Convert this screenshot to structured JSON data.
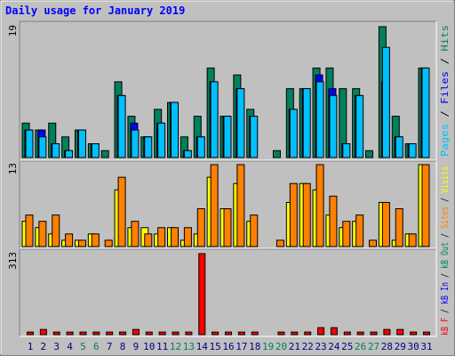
{
  "chart_data": {
    "type": "bar",
    "title": "Daily usage for January 2019",
    "categories": [
      "1",
      "2",
      "3",
      "4",
      "5",
      "6",
      "7",
      "8",
      "9",
      "10",
      "11",
      "12",
      "13",
      "14",
      "15",
      "16",
      "17",
      "18",
      "19",
      "20",
      "21",
      "22",
      "23",
      "24",
      "25",
      "26",
      "27",
      "28",
      "29",
      "30",
      "31"
    ],
    "category_colors": [
      "#000080",
      "#000080",
      "#000080",
      "#000080",
      "#00805c",
      "#00805c",
      "#000080",
      "#000080",
      "#000080",
      "#000080",
      "#000080",
      "#00805c",
      "#00805c",
      "#000080",
      "#000080",
      "#000080",
      "#000080",
      "#000080",
      "#00805c",
      "#00805c",
      "#000080",
      "#000080",
      "#000080",
      "#000080",
      "#000080",
      "#00805c",
      "#00805c",
      "#000080",
      "#000080",
      "#000080",
      "#000080"
    ],
    "legend_separator": "/",
    "panels": [
      {
        "ylim": [
          0,
          19
        ],
        "yticks": [
          19
        ],
        "series": [
          {
            "name": "Hits",
            "color": "#00805c",
            "values": [
              5,
              4,
              5,
              3,
              4,
              2,
              1,
              11,
              6,
              3,
              7,
              8,
              3,
              6,
              13,
              6,
              12,
              7,
              0,
              1,
              10,
              10,
              13,
              13,
              10,
              10,
              1,
              19,
              6,
              2,
              13
            ]
          },
          {
            "name": "Files",
            "color": "#0000ff",
            "values": [
              4,
              4,
              2,
              1,
              4,
              2,
              0,
              9,
              5,
              3,
              5,
              8,
              1,
              3,
              11,
              6,
              10,
              6,
              0,
              0,
              7,
              10,
              12,
              10,
              2,
              9,
              0,
              11,
              3,
              2,
              13
            ]
          },
          {
            "name": "Pages",
            "color": "#00c0ff",
            "values": [
              4,
              3,
              2,
              1,
              4,
              2,
              0,
              9,
              4,
              3,
              5,
              8,
              1,
              3,
              11,
              6,
              10,
              6,
              0,
              0,
              7,
              10,
              11,
              9,
              2,
              9,
              0,
              16,
              3,
              2,
              13
            ]
          }
        ]
      },
      {
        "ylim": [
          0,
          13
        ],
        "yticks": [
          13
        ],
        "series": [
          {
            "name": "Visits",
            "color": "#ffff00",
            "values": [
              4,
              3,
              2,
              1,
              1,
              2,
              0,
              9,
              3,
              3,
              2,
              3,
              1,
              2,
              11,
              6,
              10,
              4,
              0,
              0,
              7,
              10,
              9,
              5,
              3,
              4,
              0,
              7,
              1,
              2,
              13
            ]
          },
          {
            "name": "Sites",
            "color": "#ff8000",
            "values": [
              5,
              4,
              5,
              2,
              1,
              2,
              1,
              11,
              4,
              2,
              3,
              3,
              3,
              6,
              13,
              6,
              13,
              5,
              0,
              1,
              10,
              10,
              13,
              8,
              4,
              5,
              1,
              7,
              6,
              2,
              13
            ]
          }
        ]
      },
      {
        "ylim": [
          0,
          313
        ],
        "yticks": [
          313
        ],
        "series": [
          {
            "name": "kB F",
            "color": "#ff0000",
            "values": [
              10,
              20,
              10,
              10,
              10,
              10,
              10,
              10,
              20,
              10,
              10,
              10,
              10,
              313,
              10,
              10,
              10,
              10,
              0,
              10,
              10,
              10,
              27,
              27,
              10,
              10,
              10,
              20,
              20,
              10,
              10
            ]
          }
        ],
        "legend_only": [
          {
            "name": "kB In",
            "color": "#0000ff"
          },
          {
            "name": "kB Out",
            "color": "#00805c"
          }
        ]
      }
    ]
  }
}
